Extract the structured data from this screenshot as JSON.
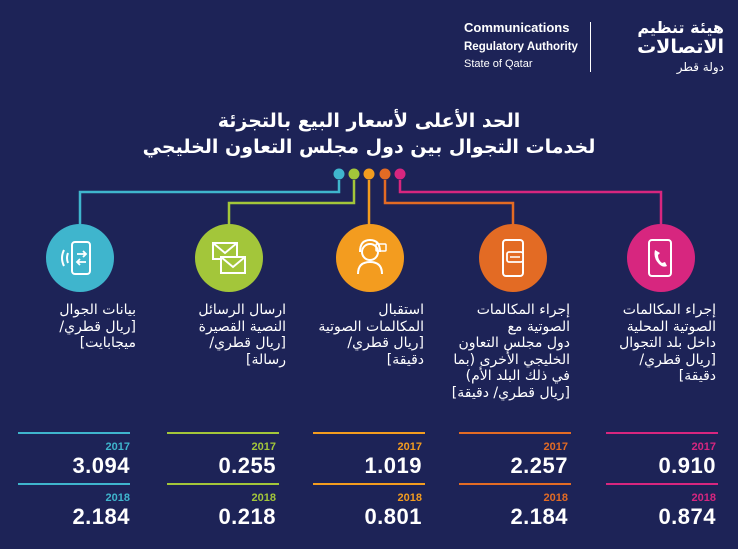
{
  "header": {
    "en_line1": "Communications",
    "en_line2": "Regulatory Authority",
    "en_line3": "State of Qatar",
    "ar_line1": "هيئة تنظيم",
    "ar_line2": "الاتصالات",
    "ar_line3": "دولة قطر"
  },
  "title": {
    "line1": "الحد الأعلى لأسعار البيع بالتجزئة",
    "line2": "لخدمات التجوال بين دول مجلس التعاون الخليجي"
  },
  "colors": {
    "background": "#1d2357",
    "cyan": "#3fb5cd",
    "lime": "#a3c63a",
    "orange": "#f39c1f",
    "red_orange": "#e36b24",
    "magenta": "#d7267f"
  },
  "columns": [
    {
      "icon": "mobile-data-icon",
      "label_lines": [
        "بيانات الجوال",
        "[ريال قطري/",
        "ميجابايت]"
      ],
      "year1": "2017",
      "value1": "3.094",
      "year2": "2018",
      "value2": "2.184"
    },
    {
      "icon": "sms-envelopes-icon",
      "label_lines": [
        "ارسال الرسائل",
        "النصية القصيرة",
        "[ريال قطري/",
        "رسالة]"
      ],
      "year1": "2017",
      "value1": "0.255",
      "year2": "2018",
      "value2": "0.218"
    },
    {
      "icon": "headset-agent-icon",
      "label_lines": [
        "استقبال",
        "المكالمات الصوتية",
        "[ريال قطري/",
        "دقيقة]"
      ],
      "year1": "2017",
      "value1": "1.019",
      "year2": "2018",
      "value2": "0.801"
    },
    {
      "icon": "phone-chat-icon",
      "label_lines": [
        "إجراء المكالمات",
        "الصوتية مع",
        "دول مجلس التعاون",
        "الخليجي الأخرى (بما",
        "في ذلك البلد الأم)",
        "[ريال قطري/ دقيقة]"
      ],
      "year1": "2017",
      "value1": "2.257",
      "year2": "2018",
      "value2": "2.184"
    },
    {
      "icon": "phone-call-icon",
      "label_lines": [
        "إجراء المكالمات",
        "الصوتية المحلية",
        "داخل بلد التجوال",
        "[ريال قطري/",
        "دقيقة]"
      ],
      "year1": "2017",
      "value1": "0.910",
      "year2": "2018",
      "value2": "0.874"
    }
  ]
}
